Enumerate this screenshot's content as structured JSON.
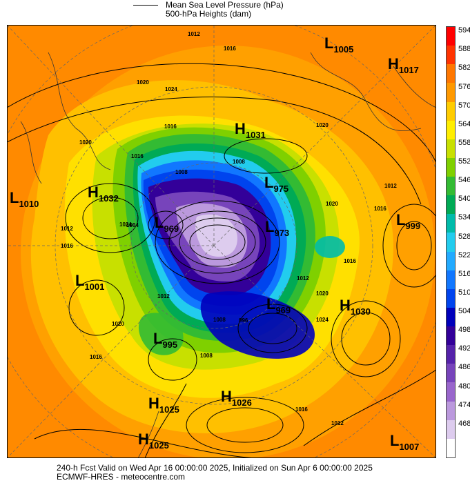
{
  "legend": {
    "mslp_label": "Mean Sea Level Pressure (hPa)",
    "heights_label": "500-hPa Heights (dam)"
  },
  "colorbar": {
    "ticks": [
      "594",
      "588",
      "582",
      "576",
      "570",
      "564",
      "558",
      "552",
      "546",
      "540",
      "534",
      "528",
      "522",
      "516",
      "510",
      "504",
      "498",
      "492",
      "486",
      "480",
      "474",
      "468"
    ],
    "colors": [
      "#ff0000",
      "#ff3300",
      "#ff7700",
      "#ff9900",
      "#ffcc00",
      "#ffee00",
      "#c8e000",
      "#7fd000",
      "#33bb33",
      "#00aa55",
      "#00bbaa",
      "#22ccee",
      "#22aaff",
      "#1177ff",
      "#0044ee",
      "#0000bb",
      "#330099",
      "#5522aa",
      "#7744bb",
      "#9966cc",
      "#bb99dd",
      "#ddccee",
      "#ffffff"
    ]
  },
  "pressure_centers": [
    {
      "type": "L",
      "value": "1005"
    },
    {
      "type": "H",
      "value": "1017"
    },
    {
      "type": "H",
      "value": "1031"
    },
    {
      "type": "H",
      "value": "1032"
    },
    {
      "type": "L",
      "value": "1010"
    },
    {
      "type": "L",
      "value": "975"
    },
    {
      "type": "L",
      "value": "969"
    },
    {
      "type": "L",
      "value": "973"
    },
    {
      "type": "L",
      "value": "999"
    },
    {
      "type": "L",
      "value": "1001"
    },
    {
      "type": "L",
      "value": "969"
    },
    {
      "type": "H",
      "value": "1030"
    },
    {
      "type": "L",
      "value": "995"
    },
    {
      "type": "H",
      "value": "1025"
    },
    {
      "type": "H",
      "value": "1026"
    },
    {
      "type": "H",
      "value": "1025"
    },
    {
      "type": "L",
      "value": "1007"
    }
  ],
  "isobar_labels": [
    "1012",
    "1016",
    "1020",
    "1024",
    "1016",
    "1020",
    "1008",
    "1020",
    "1016",
    "1012",
    "1016",
    "1020",
    "1012",
    "1024",
    "1008",
    "1004",
    "1016",
    "1012",
    "1020",
    "1024",
    "1016",
    "1008",
    "996",
    "1012",
    "1016",
    "1012",
    "1020",
    "1016",
    "1008"
  ],
  "footer": {
    "line1": "240-h Fcst Valid on Wed Apr 16 00:00:00 2025, Initialized on Sun Apr  6 00:00:00 2025",
    "line2": "ECMWF-HRES  - meteocentre.com"
  }
}
